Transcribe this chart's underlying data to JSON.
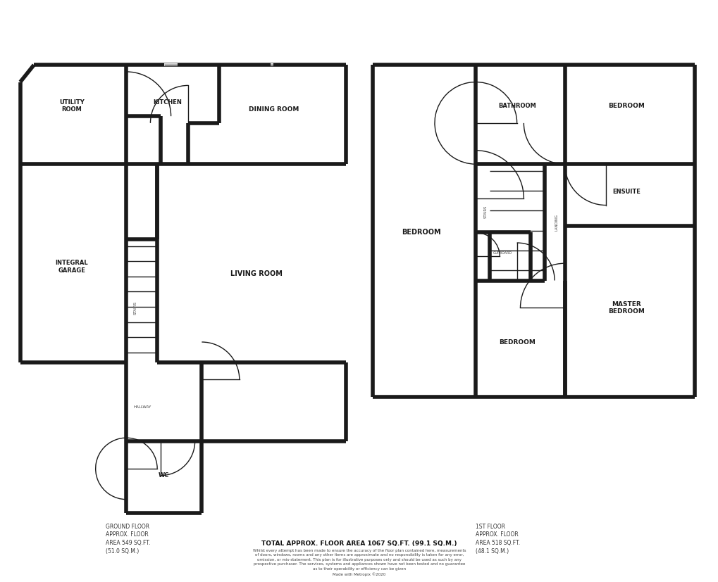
{
  "wall_color": "#1a1a1a",
  "wall_lw": 4.0,
  "thin_lw": 1.0,
  "ground_floor_label": "GROUND FLOOR\nAPPROX. FLOOR\nAREA 549 SQ.FT.\n(51.0 SQ.M.)",
  "first_floor_label": "1ST FLOOR\nAPPROX. FLOOR\nAREA 518 SQ.FT.\n(48.1 SQ.M.)",
  "total_label": "TOTAL APPROX. FLOOR AREA 1067 SQ.FT. (99.1 SQ.M.)",
  "disclaimer": "Whilst every attempt has been made to ensure the accuracy of the floor plan contained here, measurements\nof doors, windows, rooms and any other items are approximate and no responsibility is taken for any error,\nomission, or mis-statement. This plan is for illustrative purposes only and should be used as such by any\nprospective purchaser. The services, systems and appliances shown have not been tested and no guarantee\nas to their operability or efficiency can be given\nMade with Metropix ©2020"
}
